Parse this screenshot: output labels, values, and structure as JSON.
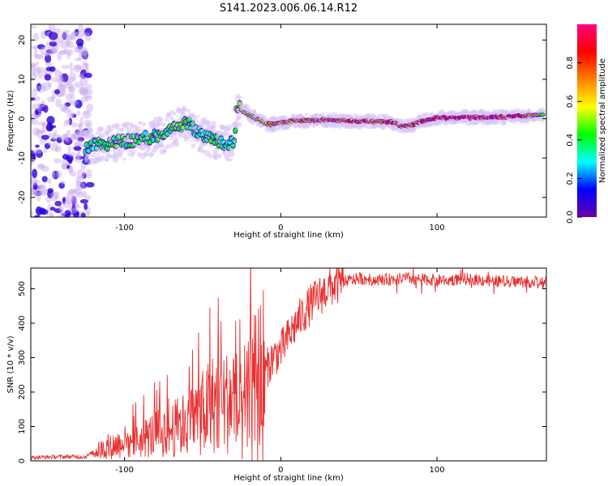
{
  "title": "S141.2023.006.06.14.R12",
  "chart_data": [
    {
      "type": "heatmap",
      "xlabel": "Height of straight line (km)",
      "ylabel": "Frequency (Hz)",
      "xlim": [
        -160,
        170
      ],
      "ylim": [
        -25,
        24
      ],
      "x_ticks": [
        -100,
        0,
        100
      ],
      "x_tick_labels": [
        "-100",
        "0",
        "100"
      ],
      "y_ticks": [
        -20,
        -10,
        0,
        10,
        20
      ],
      "y_tick_labels": [
        "-20",
        "-10",
        "0",
        "10",
        "20"
      ],
      "colorbar": {
        "label": "Normalized spectral amplitude",
        "range": [
          0,
          1
        ],
        "ticks": [
          0,
          0.2,
          0.4,
          0.6,
          0.8
        ],
        "tick_labels": [
          "0.0",
          "0.2",
          "0.4",
          "0.6",
          "0.8"
        ],
        "colormap": [
          "#6a00a8",
          "#0000ff",
          "#00ffff",
          "#00ff00",
          "#ffff00",
          "#ff8000",
          "#ff0000",
          "#ff0080"
        ]
      },
      "ridge": {
        "heights": [
          -125,
          -115,
          -105,
          -95,
          -85,
          -75,
          -65,
          -60,
          -55,
          -50,
          -45,
          -40,
          -35,
          -30,
          -28,
          -26,
          -20,
          -15,
          -10,
          -5,
          0,
          10,
          20,
          30,
          40,
          50,
          60,
          70,
          75,
          80,
          85,
          90,
          95,
          100,
          110,
          120,
          130,
          140,
          150,
          160,
          168
        ],
        "frequency": [
          -7,
          -6.5,
          -6,
          -5.5,
          -5,
          -4,
          -2,
          -1,
          -3,
          -4,
          -5,
          -6,
          -7,
          -6,
          3,
          2.5,
          1,
          0,
          -1,
          -1.5,
          -1,
          -0.5,
          -0.3,
          -0.4,
          -0.5,
          -0.6,
          -0.7,
          -0.8,
          -1.5,
          -2,
          -1.5,
          -0.8,
          0,
          0.2,
          0.3,
          0.3,
          0.3,
          0.4,
          0.6,
          0.9,
          1.2
        ],
        "amplitude": [
          0.35,
          0.4,
          0.45,
          0.42,
          0.4,
          0.42,
          0.48,
          0.5,
          0.38,
          0.4,
          0.42,
          0.45,
          0.4,
          0.35,
          0.5,
          0.55,
          0.6,
          0.62,
          0.65,
          0.7,
          0.7,
          0.72,
          0.75,
          0.78,
          0.8,
          0.82,
          0.85,
          0.85,
          0.8,
          0.82,
          0.8,
          0.78,
          0.88,
          0.92,
          0.95,
          0.95,
          0.92,
          0.95,
          0.9,
          0.7,
          0.5
        ]
      }
    },
    {
      "type": "line",
      "xlabel": "Height of straight line (km)",
      "ylabel": "SNR (10 * v/v)",
      "xlim": [
        -160,
        170
      ],
      "ylim": [
        0,
        560
      ],
      "x_ticks": [
        -100,
        0,
        100
      ],
      "x_tick_labels": [
        "-100",
        "0",
        "100"
      ],
      "y_ticks": [
        0,
        100,
        200,
        300,
        400,
        500
      ],
      "y_tick_labels": [
        "0",
        "100",
        "200",
        "300",
        "400",
        "500"
      ],
      "color": "#e83030",
      "series": [
        {
          "x": [
            -160,
            -140,
            -125,
            -120,
            -110,
            -100,
            -90,
            -80,
            -70,
            -60,
            -55,
            -50,
            -45,
            -40,
            -35,
            -30,
            -25,
            -20,
            -15,
            -10,
            -5,
            0,
            5,
            10,
            15,
            20,
            25,
            30,
            40,
            50,
            60,
            80,
            100,
            120,
            140,
            160,
            170
          ],
          "y": [
            10,
            12,
            12,
            25,
            40,
            55,
            60,
            80,
            90,
            110,
            130,
            140,
            160,
            180,
            170,
            190,
            100,
            180,
            220,
            260,
            300,
            320,
            360,
            400,
            430,
            460,
            480,
            500,
            520,
            530,
            525,
            530,
            525,
            528,
            522,
            520,
            518
          ]
        }
      ]
    }
  ]
}
